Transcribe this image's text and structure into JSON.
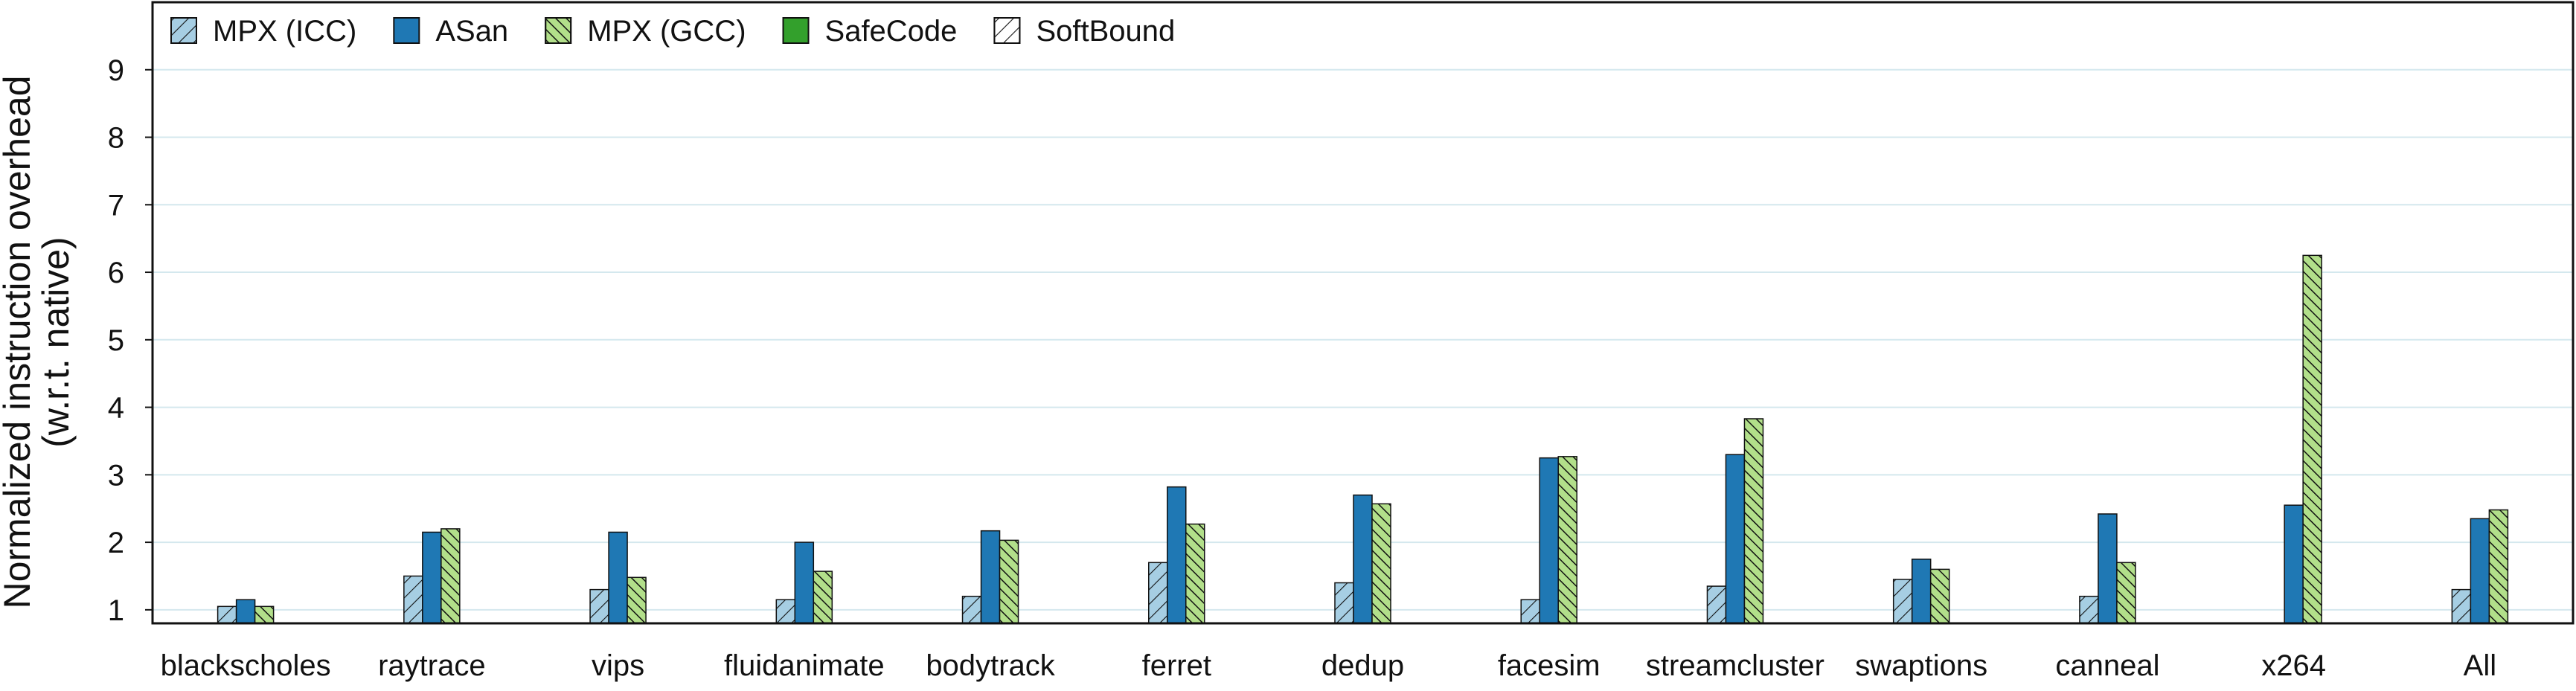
{
  "chart_data": {
    "type": "bar",
    "ylabel": [
      "Normalized instruction overhead",
      "(w.r.t. native)"
    ],
    "xlabel": "",
    "ylim": [
      0.8,
      10
    ],
    "yticks": [
      1,
      2,
      3,
      4,
      5,
      6,
      7,
      8,
      9
    ],
    "grid": "horizontal",
    "legend_position": "top-left",
    "categories": [
      "blackscholes",
      "raytrace",
      "vips",
      "fluidanimate",
      "bodytrack",
      "ferret",
      "dedup",
      "facesim",
      "streamcluster",
      "swaptions",
      "canneal",
      "x264",
      "All"
    ],
    "series": [
      {
        "name": "MPX (ICC)",
        "color": "#a6cee3",
        "hatch": "diagonal",
        "values": [
          1.05,
          1.5,
          1.3,
          1.15,
          1.2,
          1.7,
          1.4,
          1.15,
          1.35,
          1.45,
          1.2,
          null,
          1.3
        ]
      },
      {
        "name": "ASan",
        "color": "#1f78b4",
        "hatch": "none",
        "values": [
          1.15,
          2.15,
          2.15,
          2.0,
          2.17,
          2.82,
          2.7,
          3.25,
          3.3,
          1.75,
          2.42,
          2.55,
          2.35
        ]
      },
      {
        "name": "MPX (GCC)",
        "color": "#b2df8a",
        "hatch": "diagonal-dense",
        "values": [
          1.05,
          2.2,
          1.48,
          1.57,
          2.03,
          2.27,
          2.57,
          3.27,
          3.83,
          1.6,
          1.7,
          6.25,
          2.48
        ]
      },
      {
        "name": "SafeCode",
        "color": "#33a02c",
        "hatch": "none",
        "values": [
          null,
          null,
          null,
          null,
          null,
          null,
          null,
          null,
          null,
          null,
          null,
          null,
          null
        ]
      },
      {
        "name": "SoftBound",
        "color": "#ffffff",
        "hatch": "diagonal",
        "values": [
          null,
          null,
          null,
          null,
          null,
          null,
          null,
          null,
          null,
          null,
          null,
          null,
          null
        ]
      }
    ]
  }
}
